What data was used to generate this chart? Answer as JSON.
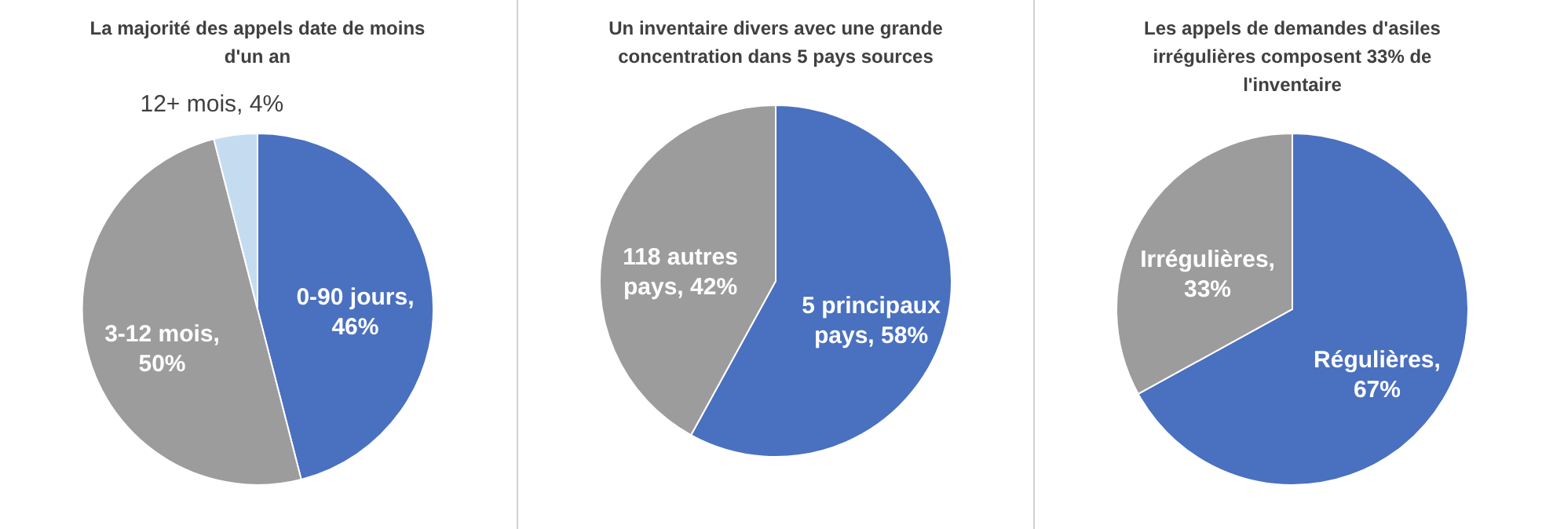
{
  "chart_data": [
    {
      "type": "pie",
      "title": "La majorité des appels date de moins d'un an",
      "categories": [
        "0-90 jours",
        "3-12 mois",
        "12+ mois"
      ],
      "values": [
        46,
        50,
        4
      ],
      "colors": [
        "#4a70c0",
        "#9c9c9c",
        "#c5dcf0"
      ],
      "value_labels": [
        ", 46%",
        ", 50%",
        ", 4%"
      ]
    },
    {
      "type": "pie",
      "title": "Un inventaire divers avec une grande concentration dans 5 pays sources",
      "categories": [
        "5 principaux pays",
        "118 autres pays"
      ],
      "values": [
        58,
        42
      ],
      "colors": [
        "#4a70c0",
        "#9c9c9c"
      ],
      "value_labels": [
        ", 58%",
        ", 42%"
      ]
    },
    {
      "type": "pie",
      "title": "Les appels de demandes d'asiles irrégulières composent 33% de l'inventaire",
      "categories": [
        "Régulières",
        "Irrégulières"
      ],
      "values": [
        67,
        33
      ],
      "colors": [
        "#4a70c0",
        "#9c9c9c"
      ],
      "value_labels": [
        ", 67%",
        ", 33%"
      ]
    }
  ]
}
